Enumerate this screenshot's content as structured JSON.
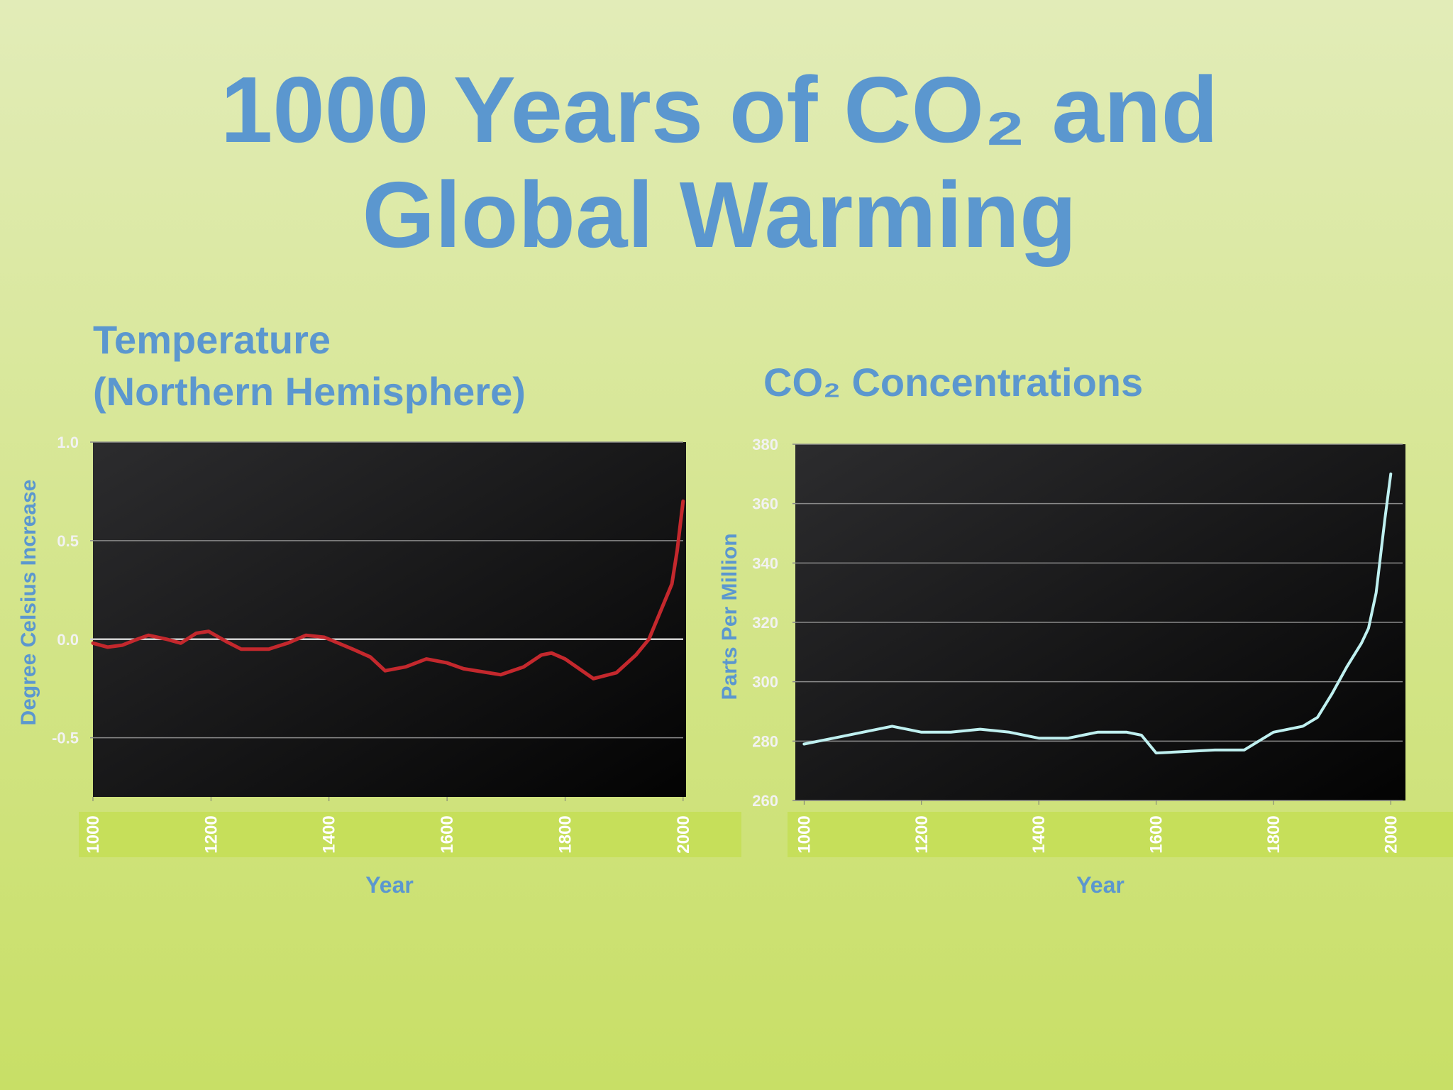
{
  "title": [
    "1000 Years of CO₂ and",
    "Global Warming"
  ],
  "chart_data": [
    {
      "type": "line",
      "title": [
        "Temperature",
        "(Northern Hemisphere)"
      ],
      "ylabel": "Degree  Celsius Increase",
      "xlabel": "Year",
      "color": "#c4282d",
      "x": [
        1000,
        1025,
        1050,
        1075,
        1094,
        1125,
        1149,
        1175,
        1196,
        1225,
        1251,
        1298,
        1330,
        1361,
        1392,
        1440,
        1470,
        1495,
        1530,
        1565,
        1600,
        1628,
        1691,
        1730,
        1760,
        1777,
        1800,
        1848,
        1887,
        1920,
        1942,
        1981,
        1990,
        2000
      ],
      "values": [
        -0.02,
        -0.04,
        -0.03,
        0.0,
        0.02,
        0.0,
        -0.02,
        0.03,
        0.04,
        -0.01,
        -0.05,
        -0.05,
        -0.02,
        0.02,
        0.01,
        -0.05,
        -0.09,
        -0.16,
        -0.14,
        -0.1,
        -0.12,
        -0.15,
        -0.18,
        -0.14,
        -0.08,
        -0.07,
        -0.1,
        -0.2,
        -0.17,
        -0.08,
        0.0,
        0.28,
        0.45,
        0.7
      ],
      "xlim": [
        1000,
        2005
      ],
      "xticks": [
        1000,
        1200,
        1400,
        1600,
        1800,
        2000
      ],
      "ylim": [
        -0.8,
        1.0
      ],
      "yticks": [
        {
          "value": -0.5,
          "label": "-0.5"
        },
        {
          "value": 0,
          "label": "0.0"
        },
        0.5,
        {
          "value": 1,
          "label": "1.0"
        }
      ],
      "grid": true
    },
    {
      "type": "line",
      "title": [
        "CO₂ Concentrations"
      ],
      "ylabel": "Parts Per Million",
      "xlabel": "Year",
      "color": "#bff0f0",
      "x": [
        1000,
        1025,
        1050,
        1100,
        1150,
        1175,
        1200,
        1250,
        1300,
        1350,
        1400,
        1450,
        1500,
        1550,
        1575,
        1600,
        1650,
        1700,
        1750,
        1800,
        1850,
        1875,
        1900,
        1925,
        1950,
        1962,
        1975,
        1990,
        2000
      ],
      "values": [
        279,
        280,
        281,
        283,
        285,
        284,
        283,
        283,
        284,
        283,
        281,
        281,
        283,
        283,
        282,
        276,
        276.5,
        277,
        277,
        283,
        285,
        288,
        296,
        305,
        313,
        318,
        330,
        355,
        370
      ],
      "xlim": [
        985,
        2025
      ],
      "xticks": [
        1000,
        1200,
        1400,
        1600,
        1800,
        2000
      ],
      "ylim": [
        260,
        380
      ],
      "yticks": [
        260,
        280,
        300,
        320,
        340,
        360,
        380
      ],
      "grid": true
    }
  ]
}
